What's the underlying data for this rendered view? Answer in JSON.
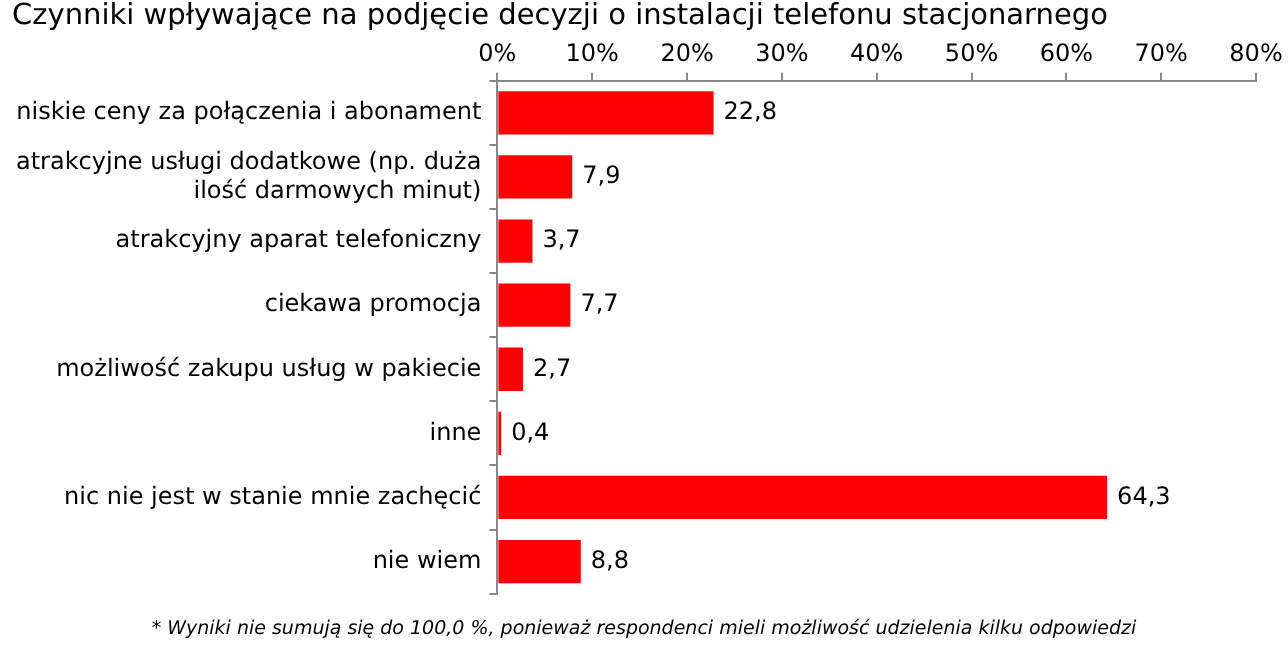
{
  "chart_data": {
    "type": "bar",
    "orientation": "horizontal",
    "title": "Czynniki wpływające na podjęcie decyzji o instalacji telefonu stacjonarnego",
    "categories": [
      "niskie ceny za połączenia i abonament",
      "atrakcyjne usługi dodatkowe (np. duża ilość darmowych minut)",
      "atrakcyjny aparat telefoniczny",
      "ciekawa promocja",
      "możliwość zakupu usług w pakiecie",
      "inne",
      "nic nie jest w stanie mnie zachęcić",
      "nie wiem"
    ],
    "values": [
      22.8,
      7.9,
      3.7,
      7.7,
      2.7,
      0.4,
      64.3,
      8.8
    ],
    "value_labels": [
      "22,8",
      "7,9",
      "3,7",
      "7,7",
      "2,7",
      "0,4",
      "64,3",
      "8,8"
    ],
    "color": "#ff0000",
    "xlim": [
      0,
      80
    ],
    "xticks": [
      {
        "value": 0,
        "label": "0%"
      },
      {
        "value": 10,
        "label": "10%"
      },
      {
        "value": 20,
        "label": "20%"
      },
      {
        "value": 30,
        "label": "30%"
      },
      {
        "value": 40,
        "label": "40%"
      },
      {
        "value": 50,
        "label": "50%"
      },
      {
        "value": 60,
        "label": "60%"
      },
      {
        "value": 70,
        "label": "70%"
      },
      {
        "value": 80,
        "label": "80%"
      }
    ],
    "grid": false,
    "legend": false,
    "annotations": [
      "* Wyniki nie sumują się do 100,0 %, ponieważ respondenci mieli możliwość udzielenia kilku odpowiedzi"
    ]
  }
}
